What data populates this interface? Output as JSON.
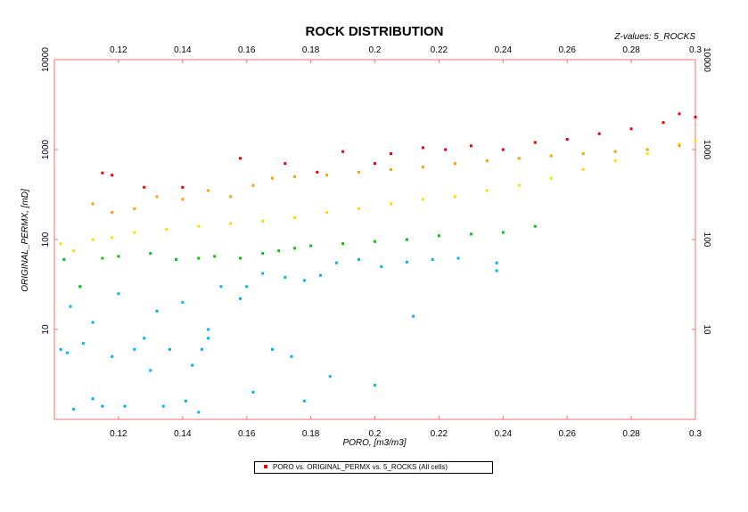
{
  "chart_data": {
    "type": "scatter",
    "title": "ROCK DISTRIBUTION",
    "zlabel": "Z-values: 5_ROCKS",
    "xlabel": "PORO, [m3/m3]",
    "ylabel": "ORIGINAL_PERMX, [mD]",
    "xlim": [
      0.1,
      0.3
    ],
    "ylim": [
      1,
      10000
    ],
    "yscale": "log",
    "grid": false,
    "x_ticks": [
      "0.12",
      "0.14",
      "0.16",
      "0.18",
      "0.2",
      "0.22",
      "0.24",
      "0.26",
      "0.28",
      "0.3"
    ],
    "y_ticks": [
      "10",
      "100",
      "1000",
      "10000"
    ],
    "legend": {
      "placement": "bottom-center",
      "label": "PORO vs. ORIGINAL_PERMX vs. 5_ROCKS (All cells)"
    },
    "series": [
      {
        "color": "#00b4f0",
        "values": [
          [
            0.102,
            6
          ],
          [
            0.104,
            5.5
          ],
          [
            0.105,
            18
          ],
          [
            0.106,
            1.3
          ],
          [
            0.109,
            7
          ],
          [
            0.112,
            1.7
          ],
          [
            0.115,
            1.4
          ],
          [
            0.118,
            5
          ],
          [
            0.122,
            1.4
          ],
          [
            0.125,
            6
          ],
          [
            0.13,
            3.5
          ],
          [
            0.134,
            1.4
          ],
          [
            0.136,
            6
          ],
          [
            0.141,
            1.6
          ],
          [
            0.143,
            4
          ],
          [
            0.145,
            1.2
          ],
          [
            0.146,
            6
          ],
          [
            0.148,
            10
          ],
          [
            0.152,
            30
          ],
          [
            0.158,
            22
          ],
          [
            0.162,
            2
          ],
          [
            0.168,
            6
          ],
          [
            0.174,
            5
          ],
          [
            0.178,
            1.6
          ],
          [
            0.186,
            3
          ],
          [
            0.2,
            2.4
          ],
          [
            0.238,
            45
          ],
          [
            0.238,
            55
          ],
          [
            0.212,
            14
          ],
          [
            0.108,
            30
          ],
          [
            0.112,
            12
          ],
          [
            0.12,
            25
          ],
          [
            0.128,
            8
          ],
          [
            0.132,
            16
          ],
          [
            0.14,
            20
          ],
          [
            0.148,
            8
          ],
          [
            0.16,
            30
          ],
          [
            0.165,
            42
          ],
          [
            0.172,
            38
          ],
          [
            0.178,
            35
          ],
          [
            0.183,
            40
          ],
          [
            0.188,
            55
          ],
          [
            0.195,
            60
          ],
          [
            0.202,
            50
          ],
          [
            0.21,
            56
          ],
          [
            0.218,
            60
          ],
          [
            0.226,
            62
          ]
        ]
      },
      {
        "color": "#00c800",
        "values": [
          [
            0.103,
            60
          ],
          [
            0.108,
            30
          ],
          [
            0.115,
            62
          ],
          [
            0.12,
            65
          ],
          [
            0.13,
            70
          ],
          [
            0.138,
            60
          ],
          [
            0.145,
            62
          ],
          [
            0.15,
            65
          ],
          [
            0.158,
            62
          ],
          [
            0.165,
            70
          ],
          [
            0.17,
            75
          ],
          [
            0.175,
            80
          ],
          [
            0.18,
            85
          ],
          [
            0.19,
            90
          ],
          [
            0.2,
            95
          ],
          [
            0.21,
            100
          ],
          [
            0.22,
            110
          ],
          [
            0.23,
            115
          ],
          [
            0.24,
            120
          ],
          [
            0.25,
            140
          ]
        ]
      },
      {
        "color": "#ffdc00",
        "values": [
          [
            0.102,
            90
          ],
          [
            0.106,
            75
          ],
          [
            0.112,
            100
          ],
          [
            0.118,
            105
          ],
          [
            0.125,
            120
          ],
          [
            0.135,
            130
          ],
          [
            0.145,
            140
          ],
          [
            0.155,
            150
          ],
          [
            0.165,
            160
          ],
          [
            0.175,
            175
          ],
          [
            0.185,
            200
          ],
          [
            0.195,
            220
          ],
          [
            0.205,
            250
          ],
          [
            0.215,
            280
          ],
          [
            0.225,
            300
          ],
          [
            0.235,
            350
          ],
          [
            0.245,
            400
          ],
          [
            0.255,
            480
          ],
          [
            0.265,
            600
          ],
          [
            0.275,
            750
          ],
          [
            0.285,
            900
          ],
          [
            0.295,
            1150
          ],
          [
            0.3,
            1250
          ]
        ]
      },
      {
        "color": "#ffa000",
        "values": [
          [
            0.112,
            250
          ],
          [
            0.118,
            200
          ],
          [
            0.125,
            220
          ],
          [
            0.132,
            300
          ],
          [
            0.14,
            280
          ],
          [
            0.148,
            350
          ],
          [
            0.155,
            300
          ],
          [
            0.162,
            400
          ],
          [
            0.168,
            480
          ],
          [
            0.175,
            500
          ],
          [
            0.185,
            520
          ],
          [
            0.195,
            560
          ],
          [
            0.205,
            600
          ],
          [
            0.215,
            640
          ],
          [
            0.225,
            700
          ],
          [
            0.235,
            750
          ],
          [
            0.245,
            800
          ],
          [
            0.255,
            850
          ],
          [
            0.265,
            900
          ],
          [
            0.275,
            950
          ],
          [
            0.285,
            1000
          ],
          [
            0.295,
            1100
          ]
        ]
      },
      {
        "color": "#f00000",
        "values": [
          [
            0.115,
            550
          ],
          [
            0.118,
            520
          ],
          [
            0.128,
            380
          ],
          [
            0.14,
            380
          ],
          [
            0.158,
            800
          ],
          [
            0.172,
            700
          ],
          [
            0.182,
            560
          ],
          [
            0.19,
            950
          ],
          [
            0.2,
            700
          ],
          [
            0.205,
            900
          ],
          [
            0.215,
            1050
          ],
          [
            0.222,
            1000
          ],
          [
            0.23,
            1100
          ],
          [
            0.24,
            1000
          ],
          [
            0.25,
            1200
          ],
          [
            0.26,
            1300
          ],
          [
            0.27,
            1500
          ],
          [
            0.28,
            1700
          ],
          [
            0.29,
            2000
          ],
          [
            0.295,
            2500
          ],
          [
            0.3,
            2300
          ]
        ]
      }
    ]
  }
}
